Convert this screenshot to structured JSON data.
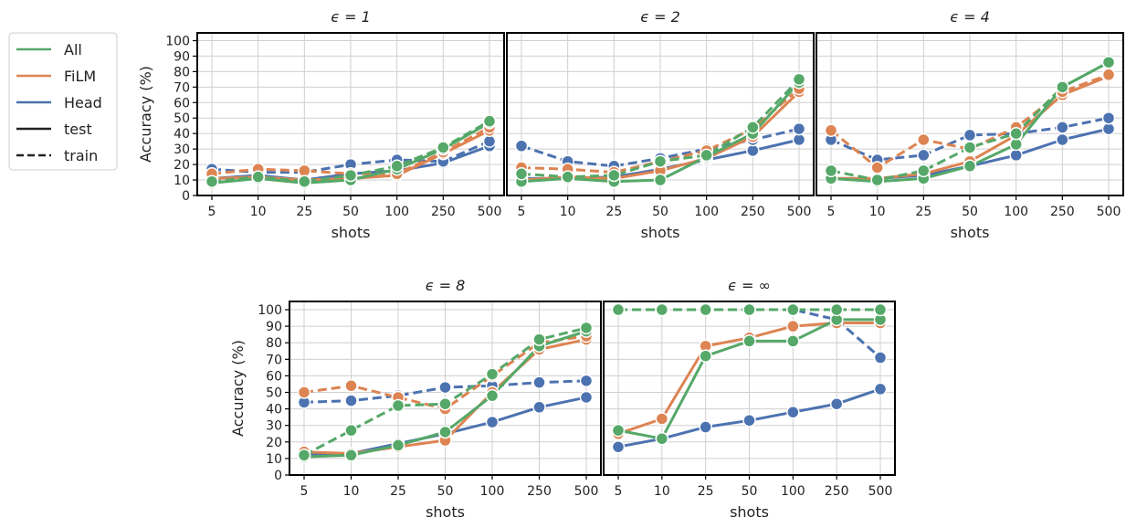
{
  "legend": {
    "entries": [
      {
        "label": "All",
        "kind": "color",
        "color": "#55a868"
      },
      {
        "label": "FiLM",
        "kind": "color",
        "color": "#dd8452"
      },
      {
        "label": "Head",
        "kind": "color",
        "color": "#4c72b0"
      },
      {
        "label": "test",
        "kind": "style",
        "dash": "solid"
      },
      {
        "label": "train",
        "kind": "style",
        "dash": "dashed"
      }
    ],
    "placement": "left"
  },
  "colors": {
    "All": "#55a868",
    "FiLM": "#dd8452",
    "Head": "#4c72b0"
  },
  "chart_data": [
    {
      "type": "line",
      "title": "ϵ = 1",
      "xlabel": "shots",
      "ylabel": "Accuracy (%)",
      "categories": [
        "5",
        "10",
        "25",
        "50",
        "100",
        "250",
        "500"
      ],
      "ylim": [
        0,
        105
      ],
      "yticks": [
        0,
        10,
        20,
        30,
        40,
        50,
        60,
        70,
        80,
        90,
        100
      ],
      "grid": true,
      "series": [
        {
          "name": "All",
          "split": "test",
          "values": [
            8,
            11,
            8,
            10,
            17,
            30,
            47
          ]
        },
        {
          "name": "All",
          "split": "train",
          "values": [
            9,
            12,
            9,
            13,
            19,
            31,
            48
          ]
        },
        {
          "name": "FiLM",
          "split": "test",
          "values": [
            11,
            12,
            10,
            11,
            13,
            27,
            42
          ]
        },
        {
          "name": "FiLM",
          "split": "train",
          "values": [
            14,
            17,
            16,
            14,
            14,
            28,
            44
          ]
        },
        {
          "name": "Head",
          "split": "test",
          "values": [
            11,
            13,
            10,
            14,
            16,
            21,
            32
          ]
        },
        {
          "name": "Head",
          "split": "train",
          "values": [
            17,
            15,
            15,
            20,
            23,
            22,
            35
          ]
        }
      ]
    },
    {
      "type": "line",
      "title": "ϵ = 2",
      "xlabel": "shots",
      "ylabel": "",
      "categories": [
        "5",
        "10",
        "25",
        "50",
        "100",
        "250",
        "500"
      ],
      "ylim": [
        0,
        105
      ],
      "yticks": [
        0,
        10,
        20,
        30,
        40,
        50,
        60,
        70,
        80,
        90,
        100
      ],
      "grid": true,
      "series": [
        {
          "name": "All",
          "split": "test",
          "values": [
            9,
            11,
            9,
            10,
            25,
            40,
            73
          ]
        },
        {
          "name": "All",
          "split": "train",
          "values": [
            14,
            12,
            13,
            22,
            26,
            44,
            75
          ]
        },
        {
          "name": "FiLM",
          "split": "test",
          "values": [
            10,
            12,
            11,
            16,
            24,
            38,
            67
          ]
        },
        {
          "name": "FiLM",
          "split": "train",
          "values": [
            18,
            17,
            15,
            22,
            29,
            43,
            69
          ]
        },
        {
          "name": "Head",
          "split": "test",
          "values": [
            11,
            11,
            12,
            17,
            23,
            29,
            36
          ]
        },
        {
          "name": "Head",
          "split": "train",
          "values": [
            32,
            22,
            19,
            24,
            30,
            36,
            43
          ]
        }
      ]
    },
    {
      "type": "line",
      "title": "ϵ = 4",
      "xlabel": "shots",
      "ylabel": "",
      "categories": [
        "5",
        "10",
        "25",
        "50",
        "100",
        "250",
        "500"
      ],
      "ylim": [
        0,
        105
      ],
      "yticks": [
        0,
        10,
        20,
        30,
        40,
        50,
        60,
        70,
        80,
        90,
        100
      ],
      "grid": true,
      "series": [
        {
          "name": "All",
          "split": "test",
          "values": [
            11,
            9,
            11,
            19,
            33,
            70,
            86
          ]
        },
        {
          "name": "All",
          "split": "train",
          "values": [
            16,
            10,
            16,
            31,
            40,
            70,
            86
          ]
        },
        {
          "name": "FiLM",
          "split": "test",
          "values": [
            11,
            11,
            14,
            22,
            39,
            65,
            77
          ]
        },
        {
          "name": "FiLM",
          "split": "train",
          "values": [
            42,
            18,
            36,
            30,
            44,
            67,
            78
          ]
        },
        {
          "name": "Head",
          "split": "test",
          "values": [
            11,
            11,
            13,
            19,
            26,
            36,
            43
          ]
        },
        {
          "name": "Head",
          "split": "train",
          "values": [
            36,
            23,
            26,
            39,
            40,
            44,
            50
          ]
        }
      ]
    },
    {
      "type": "line",
      "title": "ϵ = 8",
      "xlabel": "shots",
      "ylabel": "Accuracy (%)",
      "categories": [
        "5",
        "10",
        "25",
        "50",
        "100",
        "250",
        "500"
      ],
      "ylim": [
        0,
        105
      ],
      "yticks": [
        0,
        10,
        20,
        30,
        40,
        50,
        60,
        70,
        80,
        90,
        100
      ],
      "grid": true,
      "series": [
        {
          "name": "All",
          "split": "test",
          "values": [
            11,
            12,
            18,
            26,
            48,
            78,
            87
          ]
        },
        {
          "name": "All",
          "split": "train",
          "values": [
            12,
            27,
            42,
            43,
            61,
            82,
            89
          ]
        },
        {
          "name": "FiLM",
          "split": "test",
          "values": [
            14,
            13,
            17,
            21,
            50,
            76,
            82
          ]
        },
        {
          "name": "FiLM",
          "split": "train",
          "values": [
            50,
            54,
            47,
            40,
            60,
            80,
            84
          ]
        },
        {
          "name": "Head",
          "split": "test",
          "values": [
            12,
            13,
            19,
            25,
            32,
            41,
            47
          ]
        },
        {
          "name": "Head",
          "split": "train",
          "values": [
            44,
            45,
            48,
            53,
            54,
            56,
            57
          ]
        }
      ]
    },
    {
      "type": "line",
      "title": "ϵ = ∞",
      "xlabel": "shots",
      "ylabel": "",
      "categories": [
        "5",
        "10",
        "25",
        "50",
        "100",
        "250",
        "500"
      ],
      "ylim": [
        0,
        105
      ],
      "yticks": [
        0,
        10,
        20,
        30,
        40,
        50,
        60,
        70,
        80,
        90,
        100
      ],
      "grid": true,
      "series": [
        {
          "name": "All",
          "split": "test",
          "values": [
            27,
            22,
            72,
            81,
            81,
            94,
            94
          ]
        },
        {
          "name": "All",
          "split": "train",
          "values": [
            100,
            100,
            100,
            100,
            100,
            100,
            100
          ]
        },
        {
          "name": "FiLM",
          "split": "test",
          "values": [
            25,
            34,
            78,
            83,
            90,
            92,
            92
          ]
        },
        {
          "name": "FiLM",
          "split": "train",
          "values": [
            100,
            100,
            100,
            100,
            100,
            100,
            100
          ]
        },
        {
          "name": "Head",
          "split": "test",
          "values": [
            17,
            22,
            29,
            33,
            38,
            43,
            52
          ]
        },
        {
          "name": "Head",
          "split": "train",
          "values": [
            100,
            100,
            100,
            100,
            100,
            94,
            71
          ]
        }
      ]
    }
  ]
}
